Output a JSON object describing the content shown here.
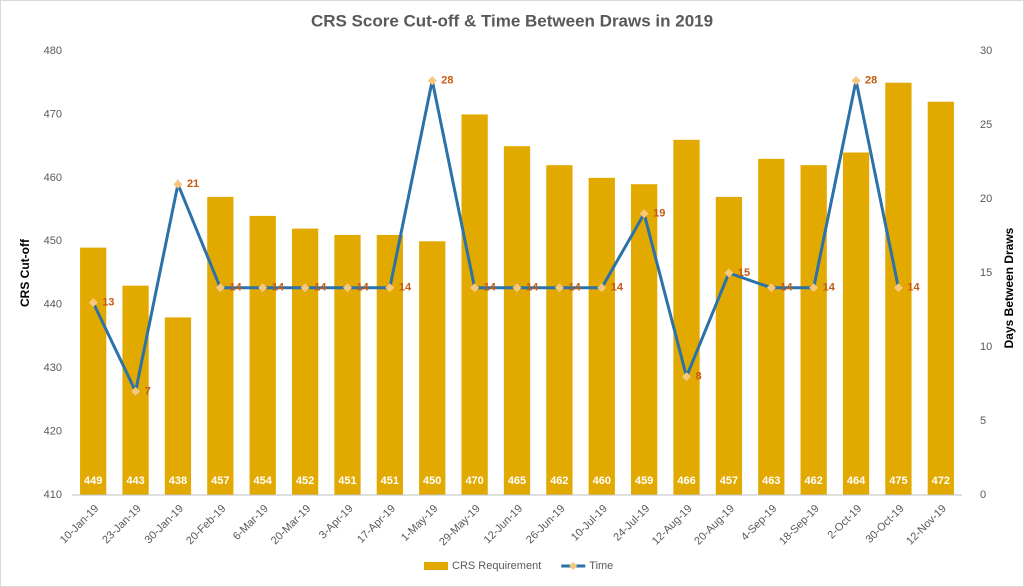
{
  "chart_data": {
    "type": "combo",
    "title": "CRS Score Cut-off & Time Between Draws in 2019",
    "ylabel": "CRS Cut-off",
    "y2label": "Days Between Draws",
    "categories": [
      "10-Jan-19",
      "23-Jan-19",
      "30-Jan-19",
      "20-Feb-19",
      "6-Mar-19",
      "20-Mar-19",
      "3-Apr-19",
      "17-Apr-19",
      "1-May-19",
      "29-May-19",
      "12-Jun-19",
      "26-Jun-19",
      "10-Jul-19",
      "24-Jul-19",
      "12-Aug-19",
      "20-Aug-19",
      "4-Sep-19",
      "18-Sep-19",
      "2-Oct-19",
      "30-Oct-19",
      "12-Nov-19"
    ],
    "series": [
      {
        "name": "CRS Requirement",
        "type": "bar",
        "axis": "y",
        "color": "#e2aa00",
        "values": [
          449,
          443,
          438,
          457,
          454,
          452,
          451,
          451,
          450,
          470,
          465,
          462,
          460,
          459,
          466,
          457,
          463,
          462,
          464,
          475,
          472
        ]
      },
      {
        "name": "Time",
        "type": "line",
        "axis": "y2",
        "color": "#2a72a8",
        "values": [
          13,
          7,
          21,
          14,
          14,
          14,
          14,
          14,
          28,
          14,
          14,
          14,
          14,
          19,
          8,
          15,
          14,
          14,
          28,
          14,
          null
        ]
      }
    ],
    "ylim": [
      410,
      480
    ],
    "yticks": [
      410,
      420,
      430,
      440,
      450,
      460,
      470,
      480
    ],
    "y2lim": [
      0,
      30
    ],
    "y2ticks": [
      0,
      5,
      10,
      15,
      20,
      25,
      30
    ],
    "grid": false,
    "legend": "bottom"
  }
}
